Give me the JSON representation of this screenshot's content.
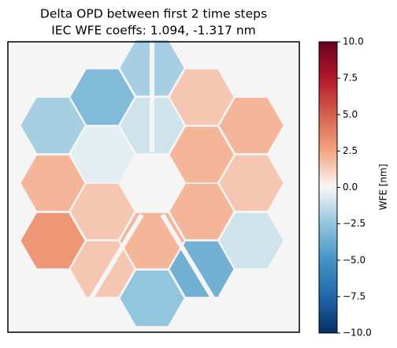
{
  "chart_data": {
    "type": "image",
    "title": "Delta OPD between first 2 time steps",
    "subtitle": "IEC WFE coeffs: 1.094, -1.317 nm",
    "colorbar_label": "WFE [nm]",
    "colormap": "RdBu_r",
    "clim": [
      -10,
      10
    ],
    "cticks": [
      {
        "value": 10,
        "label": "10.0"
      },
      {
        "value": 7.5,
        "label": "7.5"
      },
      {
        "value": 5,
        "label": "5.0"
      },
      {
        "value": 2.5,
        "label": "2.5"
      },
      {
        "value": 0,
        "label": "0.0"
      },
      {
        "value": -2.5,
        "label": "−2.5"
      },
      {
        "value": -5,
        "label": "−5.0"
      },
      {
        "value": -7.5,
        "label": "−7.5"
      },
      {
        "value": -10,
        "label": "−10.0"
      }
    ],
    "values": [
      -2,
      -3,
      1.5,
      -2,
      -0.5,
      -1,
      2,
      2,
      2,
      1.5,
      2,
      1.5,
      3,
      2,
      1.5,
      -3.5,
      -1,
      -2.5
    ]
  }
}
